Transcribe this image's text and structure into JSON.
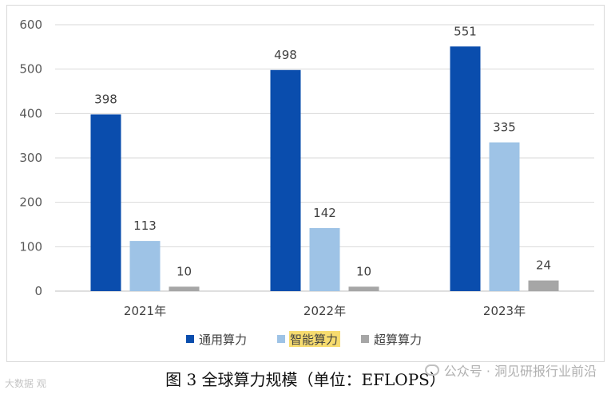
{
  "chart_data": {
    "type": "bar",
    "categories": [
      "2021年",
      "2022年",
      "2023年"
    ],
    "series": [
      {
        "name": "通用算力",
        "values": [
          398,
          498,
          551
        ],
        "color": "#0a4dad"
      },
      {
        "name": "智能算力",
        "values": [
          113,
          142,
          335
        ],
        "color": "#9ec3e6"
      },
      {
        "name": "超算算力",
        "values": [
          10,
          10,
          24
        ],
        "color": "#a6a6a6"
      }
    ],
    "ylim": [
      0,
      600
    ],
    "yticks": [
      "0",
      "100",
      "200",
      "300",
      "400",
      "500",
      "600"
    ],
    "grid": true,
    "legend_position": "bottom"
  },
  "caption": "图 3  全球算力规模（单位：EFLOPS）",
  "watermark_right": "公众号 · 洞见研报行业前沿",
  "watermark_left": "大数据 观"
}
